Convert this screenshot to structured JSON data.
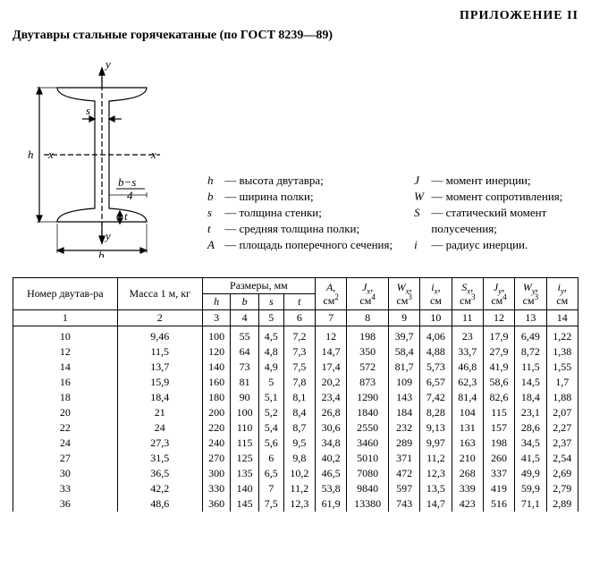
{
  "page": {
    "appendix": "ПРИЛОЖЕНИЕ II",
    "title": "Двутавры стальные горячекатаные (по ГОСТ 8239—89)"
  },
  "diagram": {
    "label_h": "h",
    "label_b": "b",
    "label_s": "s",
    "label_t": "t",
    "label_x": "x",
    "label_y": "y",
    "frac_top": "b−s",
    "frac_bot": "4"
  },
  "legend": {
    "left": [
      {
        "sym": "h",
        "txt": "— высота двутавра;"
      },
      {
        "sym": "b",
        "txt": "— ширина полки;"
      },
      {
        "sym": "s",
        "txt": "— толщина стенки;"
      },
      {
        "sym": "t",
        "txt": "— средняя толщина полки;"
      },
      {
        "sym": "A",
        "txt": "— площадь поперечного сечения;"
      }
    ],
    "right": [
      {
        "sym": "J",
        "txt": "— момент инерции;"
      },
      {
        "sym": "W",
        "txt": "— момент сопротивления;"
      },
      {
        "sym": "S",
        "txt": "— статический момент"
      },
      {
        "sym": "",
        "txt": "     полусечения;"
      },
      {
        "sym": "i",
        "txt": "— радиус инерции."
      }
    ]
  },
  "table": {
    "headers": {
      "c1": "Номер двутав-ра",
      "c2": "Масса 1 м, кг",
      "c3_group": "Размеры, мм",
      "c3": "h",
      "c4": "b",
      "c5": "s",
      "c6": "t",
      "c7": "A, см²",
      "c8": "Jₓ, см⁴",
      "c9": "Wₓ, см³",
      "c10": "iₓ, см",
      "c11": "Sₓ, см³",
      "c12": "Jᵧ, см⁴",
      "c13": "Wᵧ, см³",
      "c14": "iᵧ, см"
    },
    "colnums": [
      "1",
      "2",
      "3",
      "4",
      "5",
      "6",
      "7",
      "8",
      "9",
      "10",
      "11",
      "12",
      "13",
      "14"
    ],
    "rows": [
      [
        "10",
        "9,46",
        "100",
        "55",
        "4,5",
        "7,2",
        "12",
        "198",
        "39,7",
        "4,06",
        "23",
        "17,9",
        "6,49",
        "1,22"
      ],
      [
        "12",
        "11,5",
        "120",
        "64",
        "4,8",
        "7,3",
        "14,7",
        "350",
        "58,4",
        "4,88",
        "33,7",
        "27,9",
        "8,72",
        "1,38"
      ],
      [
        "14",
        "13,7",
        "140",
        "73",
        "4,9",
        "7,5",
        "17,4",
        "572",
        "81,7",
        "5,73",
        "46,8",
        "41,9",
        "11,5",
        "1,55"
      ],
      [
        "16",
        "15,9",
        "160",
        "81",
        "5",
        "7,8",
        "20,2",
        "873",
        "109",
        "6,57",
        "62,3",
        "58,6",
        "14,5",
        "1,7"
      ],
      [
        "18",
        "18,4",
        "180",
        "90",
        "5,1",
        "8,1",
        "23,4",
        "1290",
        "143",
        "7,42",
        "81,4",
        "82,6",
        "18,4",
        "1,88"
      ],
      [
        "20",
        "21",
        "200",
        "100",
        "5,2",
        "8,4",
        "26,8",
        "1840",
        "184",
        "8,28",
        "104",
        "115",
        "23,1",
        "2,07"
      ],
      [
        "22",
        "24",
        "220",
        "110",
        "5,4",
        "8,7",
        "30,6",
        "2550",
        "232",
        "9,13",
        "131",
        "157",
        "28,6",
        "2,27"
      ],
      [
        "24",
        "27,3",
        "240",
        "115",
        "5,6",
        "9,5",
        "34,8",
        "3460",
        "289",
        "9,97",
        "163",
        "198",
        "34,5",
        "2,37"
      ],
      [
        "27",
        "31,5",
        "270",
        "125",
        "6",
        "9,8",
        "40,2",
        "5010",
        "371",
        "11,2",
        "210",
        "260",
        "41,5",
        "2,54"
      ],
      [
        "30",
        "36,5",
        "300",
        "135",
        "6,5",
        "10,2",
        "46,5",
        "7080",
        "472",
        "12,3",
        "268",
        "337",
        "49,9",
        "2,69"
      ],
      [
        "33",
        "42,2",
        "330",
        "140",
        "7",
        "11,2",
        "53,8",
        "9840",
        "597",
        "13,5",
        "339",
        "419",
        "59,9",
        "2,79"
      ],
      [
        "36",
        "48,6",
        "360",
        "145",
        "7,5",
        "12,3",
        "61,9",
        "13380",
        "743",
        "14,7",
        "423",
        "516",
        "71,1",
        "2,89"
      ]
    ]
  },
  "style": {
    "stroke": "#000000",
    "bg": "#ffffff"
  }
}
